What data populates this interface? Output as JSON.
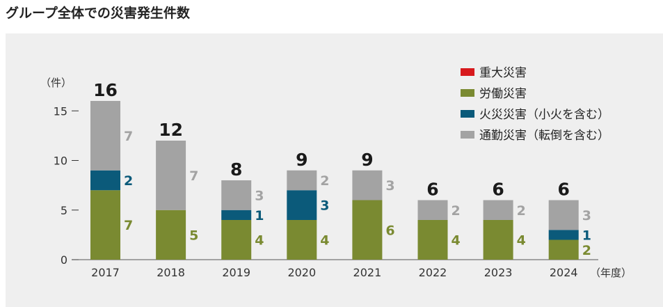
{
  "title": "グループ全体での災害発生件数",
  "chart_data": {
    "type": "bar",
    "stacked": true,
    "categories": [
      "2017",
      "2018",
      "2019",
      "2020",
      "2021",
      "2022",
      "2023",
      "2024"
    ],
    "series": [
      {
        "name": "重大災害",
        "color": "#d7191c",
        "values": [
          0,
          0,
          0,
          0,
          0,
          0,
          0,
          0
        ]
      },
      {
        "name": "労働災害",
        "color": "#7a8a31",
        "values": [
          7,
          5,
          4,
          4,
          6,
          4,
          4,
          2
        ]
      },
      {
        "name": "火災災害（小火を含む）",
        "color": "#0b5a7a",
        "values": [
          2,
          0,
          1,
          3,
          0,
          0,
          0,
          1
        ]
      },
      {
        "name": "通勤災害（転倒を含む）",
        "color": "#a3a3a3",
        "values": [
          7,
          7,
          3,
          2,
          3,
          2,
          2,
          3
        ]
      }
    ],
    "totals": [
      16,
      12,
      8,
      9,
      9,
      6,
      6,
      6
    ],
    "ylabel": "（件）",
    "xlabel": "（年度）",
    "yticks": [
      0,
      5,
      10,
      15
    ],
    "ylim": [
      0,
      16
    ],
    "legend": "top-right",
    "grid": false
  }
}
